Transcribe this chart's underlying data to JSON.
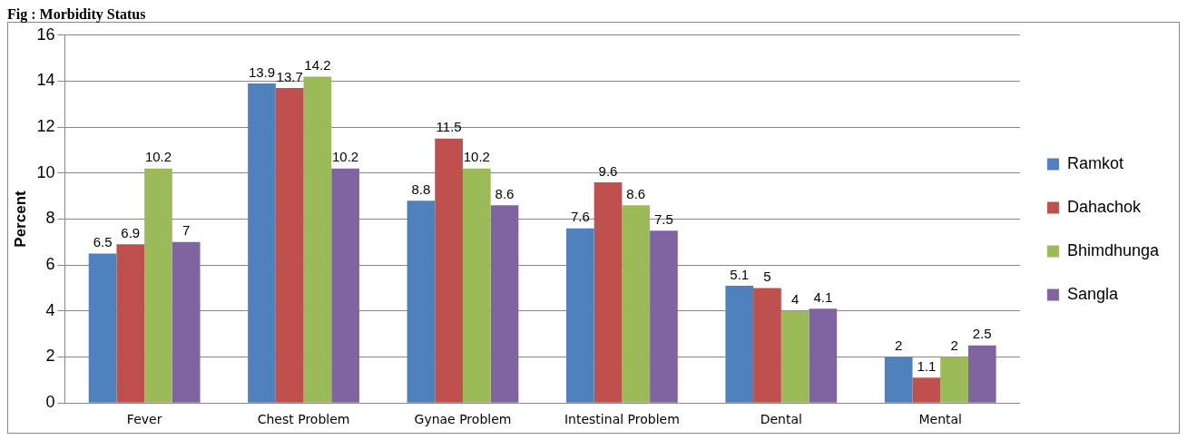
{
  "chart_data": {
    "type": "bar",
    "title": "Fig : Morbidity Status",
    "ylabel": "Percent",
    "categories": [
      "Fever",
      "Chest Problem",
      "Gynae Problem",
      "Intestinal Problem",
      "Dental",
      "Mental"
    ],
    "series": [
      {
        "name": "Ramkot",
        "color": "#4f81bd",
        "values": [
          6.5,
          13.9,
          8.8,
          7.6,
          5.1,
          2
        ]
      },
      {
        "name": "Dahachok",
        "color": "#c0504d",
        "values": [
          6.9,
          13.7,
          11.5,
          9.6,
          5,
          1.1
        ]
      },
      {
        "name": "Bhimdhunga",
        "color": "#9bbb59",
        "values": [
          10.2,
          14.2,
          10.2,
          8.6,
          4,
          2
        ]
      },
      {
        "name": "Sangla",
        "color": "#8064a2",
        "values": [
          7,
          10.2,
          8.6,
          7.5,
          4.1,
          2.5
        ]
      }
    ],
    "ylim": [
      0,
      16
    ],
    "yticks": [
      0,
      2,
      4,
      6,
      8,
      10,
      12,
      14,
      16
    ],
    "grid": "y",
    "legend": "right",
    "data_labels": true
  }
}
